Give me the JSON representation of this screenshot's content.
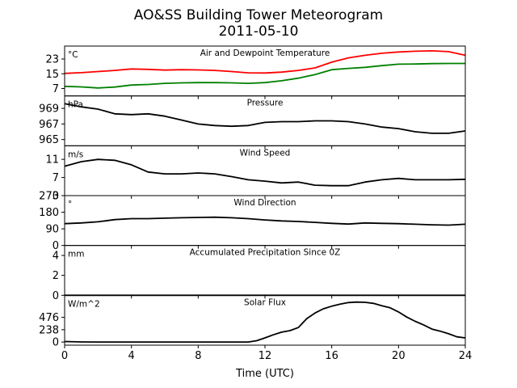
{
  "chart_data": {
    "type": "line",
    "title": "AO&SS Building Tower Meteorogram",
    "subtitle": "2011-05-10",
    "xlabel": "Time (UTC)",
    "xlim": [
      0,
      24
    ],
    "xticks": [
      0,
      4,
      8,
      12,
      16,
      20,
      24
    ],
    "panels": [
      {
        "title": "Air and Dewpoint Temperature",
        "unit": "°C",
        "ylim": [
          3,
          30
        ],
        "yticks": [
          7,
          15,
          23
        ],
        "series": [
          {
            "color": "#ff0000",
            "x": [
              0,
              1,
              2,
              3,
              4,
              5,
              6,
              7,
              8,
              9,
              10,
              11,
              12,
              13,
              14,
              15,
              16,
              17,
              18,
              19,
              20,
              21,
              22,
              23,
              24
            ],
            "y": [
              15.2,
              15.6,
              16.2,
              16.8,
              17.6,
              17.4,
              17,
              17.2,
              17.1,
              16.8,
              16.2,
              15.5,
              15.4,
              15.9,
              16.8,
              18.2,
              21.3,
              23.6,
              25,
              26.1,
              26.8,
              27.2,
              27.4,
              27,
              25
            ]
          },
          {
            "color": "#008000",
            "x": [
              0,
              1,
              2,
              3,
              4,
              5,
              6,
              7,
              8,
              9,
              10,
              11,
              12,
              13,
              14,
              15,
              16,
              17,
              18,
              19,
              20,
              21,
              22,
              23,
              24
            ],
            "y": [
              8.2,
              7.9,
              7.3,
              7.8,
              8.9,
              9.2,
              9.8,
              10.1,
              10.2,
              10.2,
              10.1,
              9.8,
              10.2,
              11.2,
              12.6,
              14.6,
              17.2,
              17.9,
              18.5,
              19.4,
              20.2,
              20.3,
              20.5,
              20.6,
              20.6
            ]
          }
        ]
      },
      {
        "title": "Pressure",
        "unit": "hPa",
        "ylim": [
          964.2,
          970.6
        ],
        "yticks": [
          965,
          967,
          969
        ],
        "series": [
          {
            "color": "#000000",
            "x": [
              0,
              1,
              2,
              3,
              4,
              5,
              6,
              7,
              8,
              9,
              10,
              11,
              12,
              13,
              14,
              15,
              16,
              17,
              18,
              19,
              20,
              21,
              22,
              23,
              24
            ],
            "y": [
              969.6,
              969.2,
              968.9,
              968.3,
              968.2,
              968.3,
              968,
              967.5,
              967,
              966.8,
              966.7,
              966.8,
              967.2,
              967.3,
              967.3,
              967.4,
              967.4,
              967.3,
              967,
              966.6,
              966.4,
              966,
              965.8,
              965.8,
              966.1
            ]
          }
        ]
      },
      {
        "title": "Wind Speed",
        "unit": "m/s",
        "ylim": [
          3,
          14
        ],
        "yticks": [
          3,
          7,
          11
        ],
        "series": [
          {
            "color": "#000000",
            "x": [
              0,
              1,
              2,
              3,
              4,
              5,
              6,
              7,
              8,
              9,
              10,
              11,
              12,
              13,
              14,
              15,
              16,
              17,
              18,
              19,
              20,
              21,
              22,
              23,
              24
            ],
            "y": [
              9.5,
              10.5,
              11,
              10.8,
              9.8,
              8.2,
              7.8,
              7.8,
              8,
              7.8,
              7.2,
              6.5,
              6.2,
              5.8,
              6,
              5.3,
              5.2,
              5.2,
              6,
              6.5,
              6.8,
              6.5,
              6.5,
              6.5,
              6.6
            ]
          }
        ]
      },
      {
        "title": "Wind Direction",
        "unit": "°",
        "ylim": [
          0,
          270
        ],
        "yticks": [
          0,
          90,
          180,
          270
        ],
        "series": [
          {
            "color": "#000000",
            "x": [
              0,
              1,
              2,
              3,
              4,
              5,
              6,
              7,
              8,
              9,
              10,
              11,
              12,
              13,
              14,
              15,
              16,
              17,
              18,
              19,
              20,
              21,
              22,
              23,
              24
            ],
            "y": [
              118,
              122,
              128,
              140,
              145,
              145,
              148,
              150,
              152,
              153,
              150,
              145,
              138,
              133,
              130,
              125,
              120,
              116,
              122,
              120,
              118,
              115,
              112,
              110,
              115
            ]
          }
        ]
      },
      {
        "title": "Accumulated Precipitation Since 0Z",
        "unit": "mm",
        "ylim": [
          0,
          5
        ],
        "yticks": [
          0,
          2,
          4
        ],
        "series": [
          {
            "color": "#000000",
            "x": [
              0,
              24
            ],
            "y": [
              0,
              0
            ]
          }
        ]
      },
      {
        "title": "Solar Flux",
        "unit": "W/m^2",
        "ylim": [
          -60,
          900
        ],
        "yticks": [
          0,
          238,
          476
        ],
        "series": [
          {
            "color": "#000000",
            "x": [
              0,
              1,
              2,
              3,
              4,
              5,
              6,
              7,
              8,
              9,
              10,
              11,
              11.5,
              12,
              12.5,
              13,
              13.5,
              14,
              14.5,
              15,
              15.5,
              16,
              16.5,
              17,
              17.5,
              18,
              18.5,
              19,
              19.5,
              20,
              20.5,
              21,
              21.5,
              22,
              22.5,
              23,
              23.5,
              24
            ],
            "y": [
              10,
              2,
              0,
              0,
              0,
              0,
              0,
              0,
              0,
              0,
              0,
              0,
              25,
              80,
              140,
              190,
              220,
              280,
              450,
              560,
              640,
              690,
              730,
              760,
              770,
              765,
              745,
              700,
              660,
              580,
              480,
              400,
              330,
              250,
              210,
              160,
              100,
              80
            ]
          }
        ]
      }
    ]
  }
}
